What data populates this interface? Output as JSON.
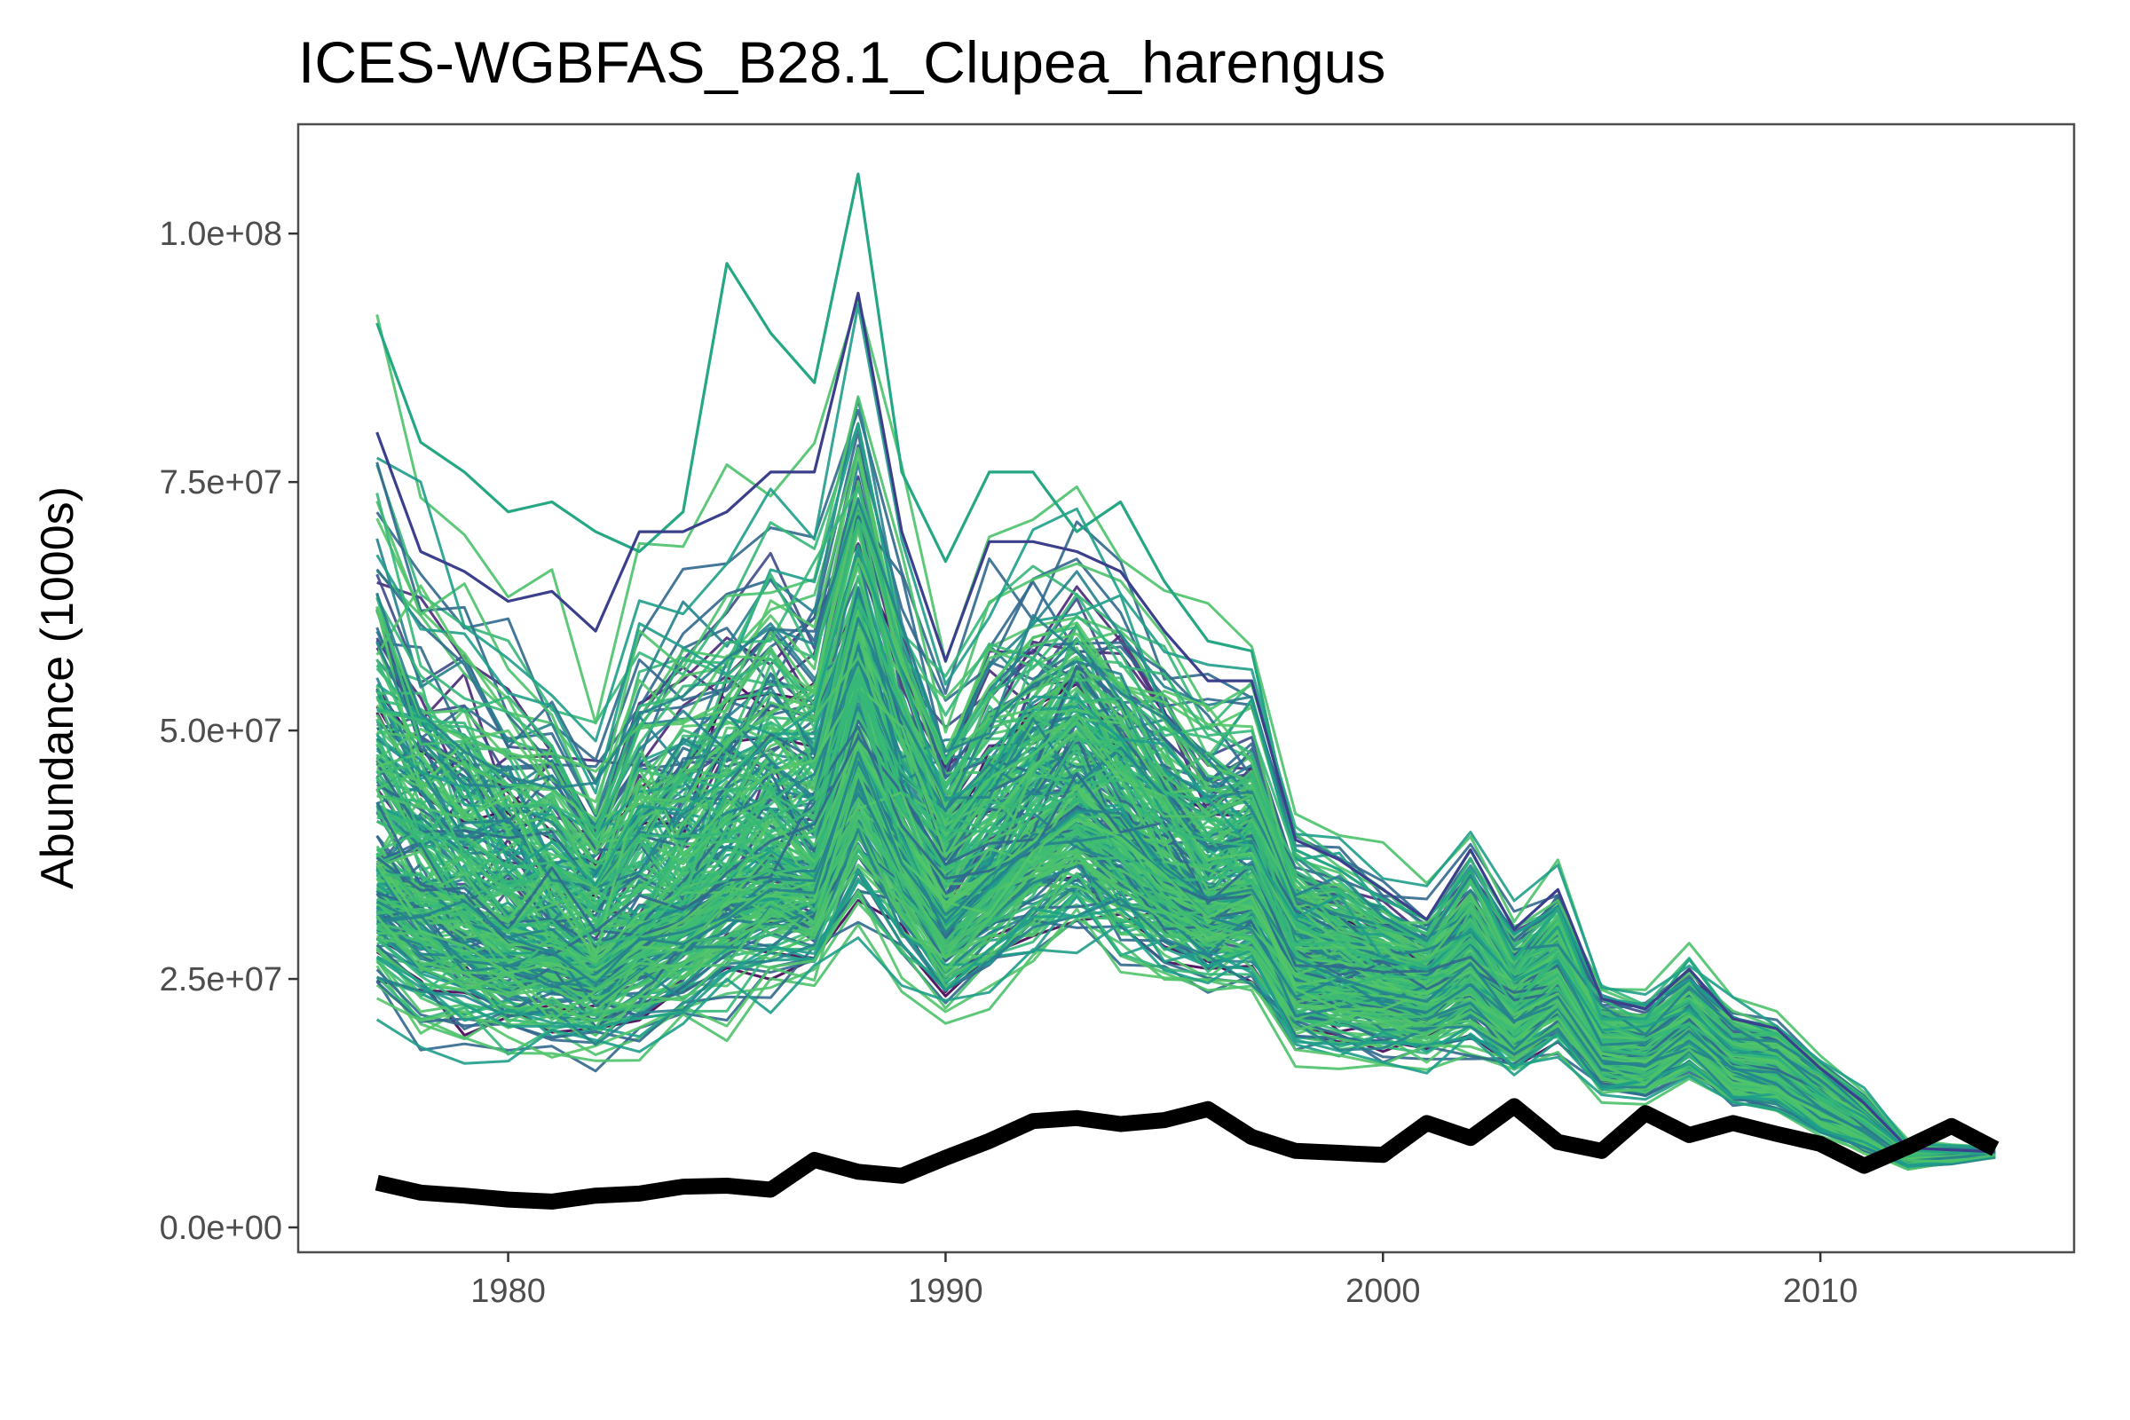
{
  "chart_data": {
    "type": "line",
    "title": "ICES-WGBFAS_B28.1_Clupea_harengus",
    "xlabel": "",
    "ylabel": "Abundance (1000s)",
    "xlim": [
      1975.2,
      2015.8
    ],
    "ylim": [
      -2500000,
      111000000
    ],
    "x_ticks": [
      1980,
      1990,
      2000,
      2010
    ],
    "x_tick_labels": [
      "1980",
      "1990",
      "2000",
      "2010"
    ],
    "y_ticks": [
      0,
      25000000,
      50000000,
      75000000,
      100000000
    ],
    "y_tick_labels": [
      "0.0e+00",
      "2.5e+07",
      "5.0e+07",
      "7.5e+07",
      "1.0e+08"
    ],
    "grid": false,
    "legend": "none",
    "years": [
      1977,
      1978,
      1979,
      1980,
      1981,
      1982,
      1983,
      1984,
      1985,
      1986,
      1987,
      1988,
      1989,
      1990,
      1991,
      1992,
      1993,
      1994,
      1995,
      1996,
      1997,
      1998,
      1999,
      2000,
      2001,
      2002,
      2003,
      2004,
      2005,
      2006,
      2007,
      2008,
      2009,
      2010,
      2011,
      2012,
      2013,
      2014
    ],
    "ensemble_median": [
      37000000,
      35000000,
      33000000,
      31000000,
      30000000,
      28000000,
      31000000,
      33000000,
      36000000,
      38000000,
      37000000,
      50000000,
      40000000,
      33000000,
      37000000,
      41000000,
      44000000,
      41000000,
      37000000,
      34000000,
      35000000,
      27000000,
      26000000,
      25000000,
      24000000,
      27000000,
      22000000,
      25000000,
      18000000,
      17500000,
      20000000,
      16500000,
      15500000,
      12500000,
      10000000,
      7000000,
      7200000,
      7500000
    ],
    "ensemble_low": [
      22000000,
      18000000,
      17000000,
      16000000,
      16500000,
      16000000,
      17500000,
      19000000,
      21000000,
      23000000,
      24000000,
      30000000,
      25000000,
      21000000,
      23500000,
      26000000,
      28000000,
      26000000,
      24000000,
      23000000,
      23000000,
      17000000,
      16500000,
      16000000,
      16000000,
      17000000,
      15000000,
      17500000,
      13000000,
      12500000,
      15000000,
      12000000,
      11500000,
      9000000,
      7500000,
      6000000,
      6300000,
      7000000
    ],
    "ensemble_high": [
      80000000,
      68000000,
      64000000,
      60000000,
      57000000,
      50000000,
      62000000,
      66000000,
      68000000,
      72000000,
      70000000,
      88000000,
      68000000,
      56000000,
      65000000,
      68000000,
      70000000,
      65000000,
      60000000,
      56000000,
      56000000,
      40000000,
      38000000,
      35000000,
      32000000,
      39000000,
      31000000,
      35000000,
      24000000,
      23000000,
      27000000,
      22000000,
      21000000,
      17000000,
      13500000,
      8500000,
      8200000,
      8000000
    ],
    "outlier_series": [
      {
        "values": [
          91000000,
          79000000,
          76000000,
          72000000,
          73000000,
          70000000,
          68000000,
          72000000,
          97000000,
          90000000,
          85000000,
          106000000,
          76000000,
          67000000,
          76000000,
          76000000,
          70000000,
          73000000,
          65000000,
          59000000,
          58000000,
          38000000,
          36000000,
          33000000,
          31000000,
          36000000,
          27000000,
          32000000,
          21000000,
          21000000,
          27000000,
          21000000,
          20000000,
          16000000,
          13000000,
          8000000,
          7500000,
          7500000
        ],
        "color": "#25a784"
      },
      {
        "values": [
          80000000,
          68000000,
          66000000,
          63000000,
          64000000,
          60000000,
          70000000,
          70000000,
          72000000,
          76000000,
          76000000,
          94000000,
          70000000,
          57000000,
          69000000,
          69000000,
          68000000,
          66000000,
          60000000,
          55000000,
          55000000,
          39000000,
          37000000,
          34000000,
          31000000,
          38000000,
          30000000,
          34000000,
          23000000,
          22000000,
          26000000,
          21000000,
          20000000,
          16000000,
          12500000,
          8000000,
          7800000,
          7600000
        ],
        "color": "#3b3f8c"
      }
    ],
    "reference_series": {
      "name": "",
      "color": "#000000",
      "values": [
        4500000,
        3500000,
        3200000,
        2800000,
        2600000,
        3200000,
        3400000,
        4100000,
        4200000,
        3800000,
        6800000,
        5600000,
        5200000,
        7000000,
        8700000,
        10700000,
        11000000,
        10400000,
        10800000,
        11900000,
        9100000,
        7700000,
        7500000,
        7300000,
        10500000,
        9000000,
        12200000,
        8600000,
        7700000,
        11500000,
        9300000,
        10500000,
        9400000,
        8400000,
        6200000,
        8100000,
        10200000,
        7900000
      ]
    },
    "ensemble_palette": [
      "#440154",
      "#482878",
      "#3e4a89",
      "#31688e",
      "#26828e",
      "#1f9e89",
      "#35b779",
      "#52c569",
      "#4cc26c",
      "#3fbc73"
    ]
  }
}
